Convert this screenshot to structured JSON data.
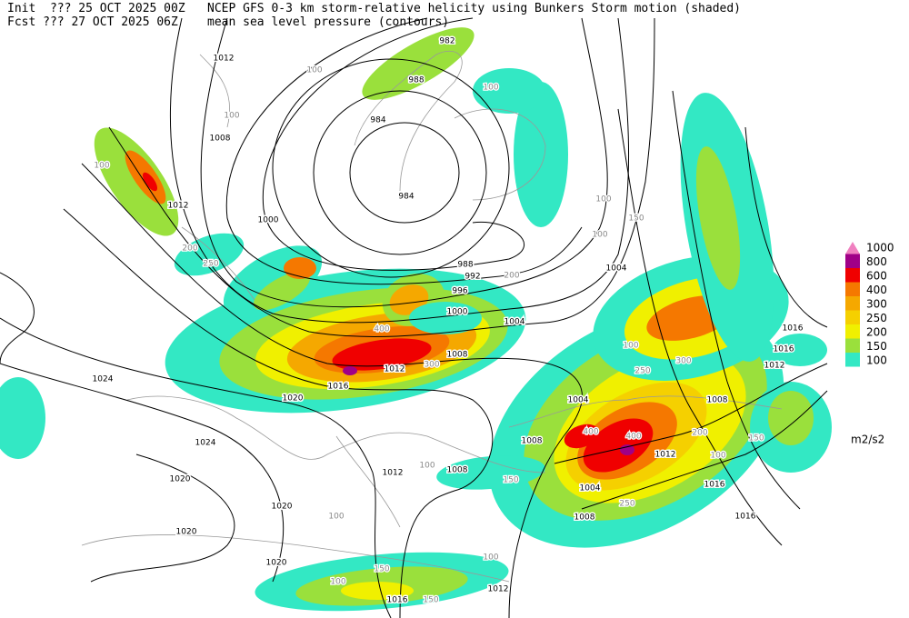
{
  "header": {
    "init": "Init  ??? 25 OCT 2025 00Z",
    "fcst": "Fcst ??? 27 OCT 2025 06Z",
    "title": "NCEP GFS 0-3 km storm-relative helicity using Bunkers Storm motion (shaded)",
    "subtitle": "mean sea level pressure (contours)"
  },
  "legend": {
    "levels": [
      1000,
      800,
      600,
      400,
      300,
      250,
      200,
      150,
      100
    ],
    "colors": [
      "#f080c0",
      "#a00088",
      "#f00000",
      "#f57800",
      "#f5a800",
      "#f5d000",
      "#f0f000",
      "#9ae03c",
      "#33e8c4"
    ],
    "unit": "m2/s2"
  },
  "isobar_labels": [
    982,
    988,
    984,
    984,
    1012,
    1008,
    1012,
    1000,
    988,
    992,
    996,
    1000,
    1004,
    1008,
    1012,
    1016,
    1020,
    1024,
    1024,
    1020,
    1020,
    1020,
    1020,
    1016,
    1012,
    1012,
    1008,
    1008,
    1004,
    1004,
    1004,
    1008,
    1008,
    1012,
    1016,
    1016,
    1016,
    1016,
    1012
  ],
  "shade_labels": [
    100,
    100,
    100,
    100,
    100,
    100,
    100,
    100,
    100,
    100,
    100,
    100,
    150,
    150,
    150,
    150,
    150,
    200,
    200,
    200,
    250,
    250,
    250,
    300,
    300,
    400,
    400,
    400
  ]
}
